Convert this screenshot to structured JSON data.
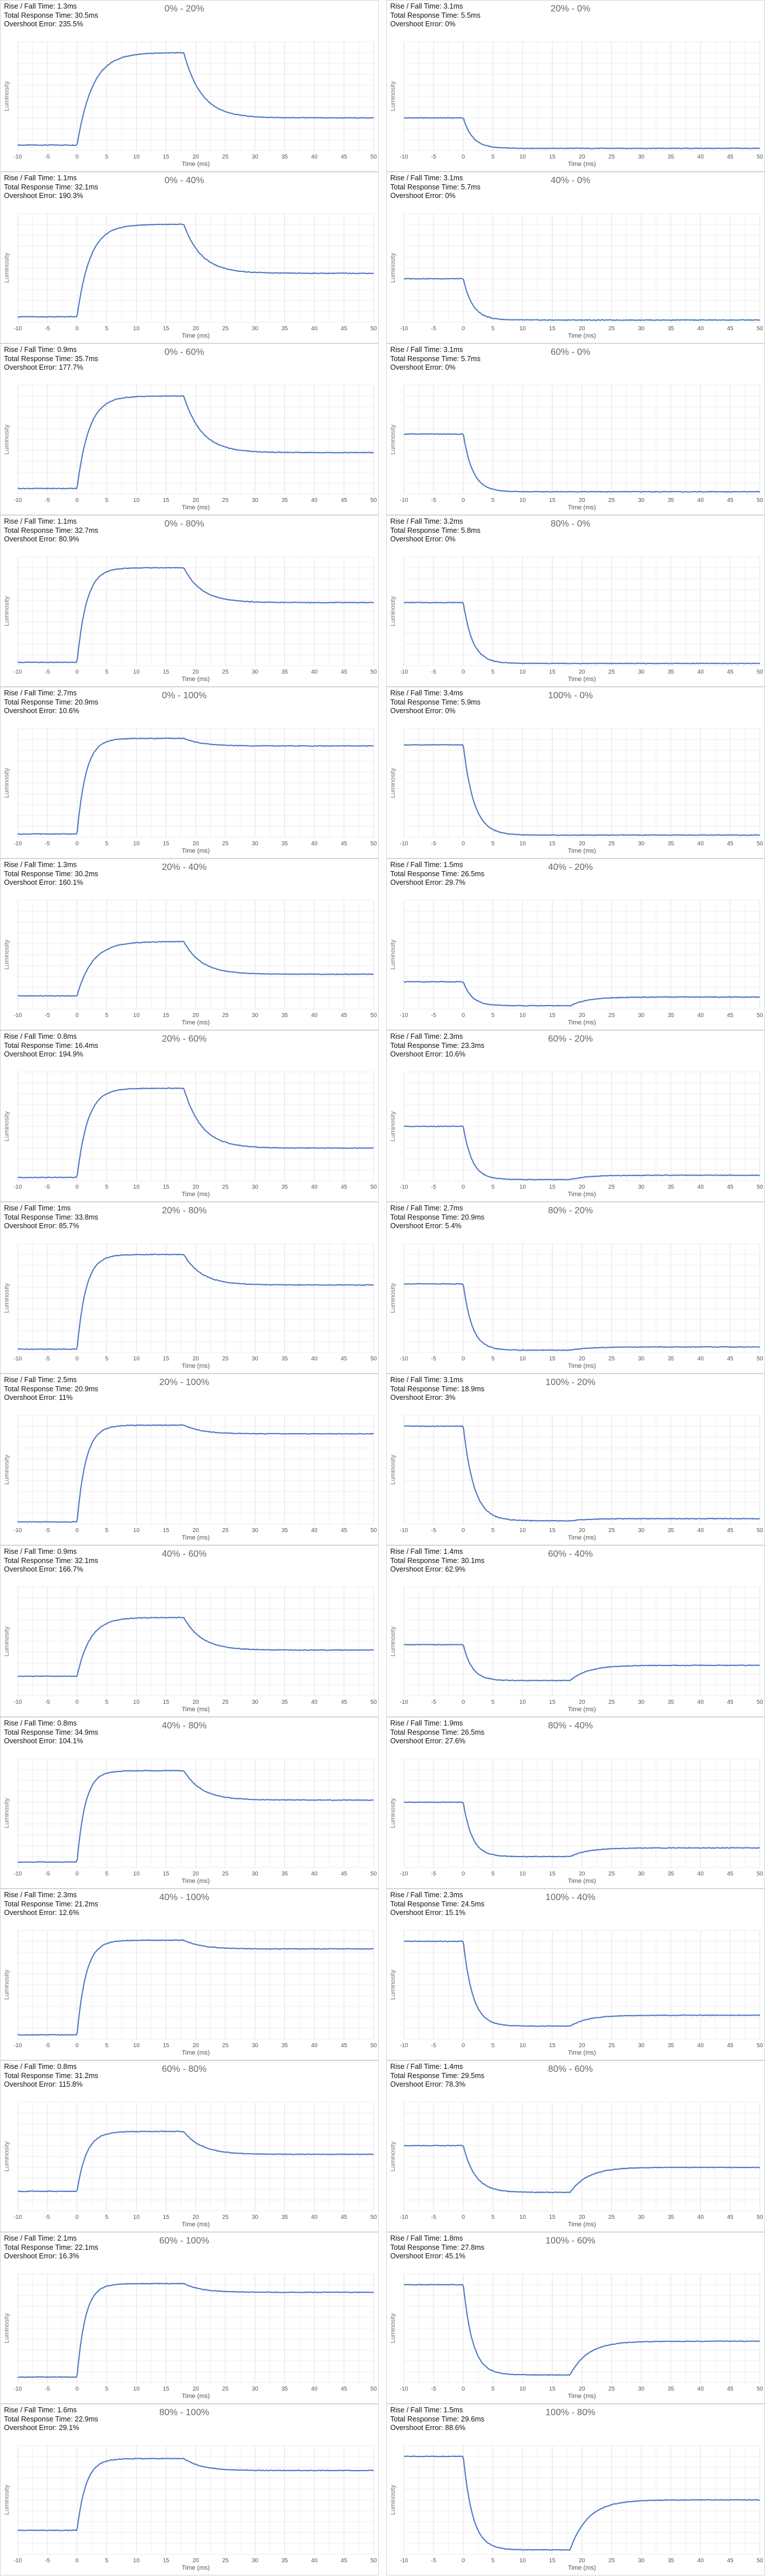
{
  "chart_data": {
    "type": "line",
    "x_unit_label": "Time (ms)",
    "y_label": "Luminosity",
    "x_ticks": [
      -10,
      -5,
      0,
      5,
      10,
      15,
      20,
      25,
      30,
      35,
      40,
      45,
      50
    ],
    "xlim": [
      -10,
      50
    ],
    "ylim": [
      0,
      1
    ],
    "grid": true,
    "line_color": "#4a76c4",
    "panels": [
      {
        "title": "0% - 20%",
        "rise": "Rise / Fall Time: 1.3ms",
        "total": "Total Response Time: 30.5ms",
        "overshoot": "Overshoot Error: 235.5%",
        "base": 0.05,
        "target": 0.3,
        "peak": 0.9,
        "hold_ms": 18,
        "tau": 2.6
      },
      {
        "title": "20% - 0%",
        "rise": "Rise / Fall Time: 3.1ms",
        "total": "Total Response Time: 5.5ms",
        "overshoot": "Overshoot Error: 0%",
        "base": 0.3,
        "target": 0.02,
        "peak": 0.02,
        "hold_ms": 0,
        "tau": 1.6
      },
      {
        "title": "0% - 40%",
        "rise": "Rise / Fall Time: 1.1ms",
        "total": "Total Response Time: 32.1ms",
        "overshoot": "Overshoot Error: 190.3%",
        "base": 0.05,
        "target": 0.45,
        "peak": 0.9,
        "hold_ms": 18,
        "tau": 2.2
      },
      {
        "title": "40% - 0%",
        "rise": "Rise / Fall Time: 3.1ms",
        "total": "Total Response Time: 5.7ms",
        "overshoot": "Overshoot Error: 0%",
        "base": 0.4,
        "target": 0.02,
        "peak": 0.02,
        "hold_ms": 0,
        "tau": 1.6
      },
      {
        "title": "0% - 60%",
        "rise": "Rise / Fall Time: 0.9ms",
        "total": "Total Response Time: 35.7ms",
        "overshoot": "Overshoot Error: 177.7%",
        "base": 0.05,
        "target": 0.38,
        "peak": 0.9,
        "hold_ms": 18,
        "tau": 2.0
      },
      {
        "title": "60% - 0%",
        "rise": "Rise / Fall Time: 3.1ms",
        "total": "Total Response Time: 5.7ms",
        "overshoot": "Overshoot Error: 0%",
        "base": 0.55,
        "target": 0.02,
        "peak": 0.02,
        "hold_ms": 0,
        "tau": 1.6
      },
      {
        "title": "0% - 80%",
        "rise": "Rise / Fall Time: 1.1ms",
        "total": "Total Response Time: 32.7ms",
        "overshoot": "Overshoot Error: 80.9%",
        "base": 0.03,
        "target": 0.58,
        "peak": 0.9,
        "hold_ms": 18,
        "tau": 1.6
      },
      {
        "title": "80% - 0%",
        "rise": "Rise / Fall Time: 3.2ms",
        "total": "Total Response Time: 5.8ms",
        "overshoot": "Overshoot Error: 0%",
        "base": 0.58,
        "target": 0.02,
        "peak": 0.02,
        "hold_ms": 0,
        "tau": 1.6
      },
      {
        "title": "0% - 100%",
        "rise": "Rise / Fall Time: 2.7ms",
        "total": "Total Response Time: 20.9ms",
        "overshoot": "Overshoot Error: 10.6%",
        "base": 0.03,
        "target": 0.84,
        "peak": 0.91,
        "hold_ms": 18,
        "tau": 1.5
      },
      {
        "title": "100% - 0%",
        "rise": "Rise / Fall Time: 3.4ms",
        "total": "Total Response Time: 5.9ms",
        "overshoot": "Overshoot Error: 0%",
        "base": 0.85,
        "target": 0.02,
        "peak": 0.02,
        "hold_ms": 0,
        "tau": 1.8
      },
      {
        "title": "20% - 40%",
        "rise": "Rise / Fall Time: 1.3ms",
        "total": "Total Response Time: 30.2ms",
        "overshoot": "Overshoot Error: 160.1%",
        "base": 0.12,
        "target": 0.32,
        "peak": 0.62,
        "hold_ms": 18,
        "tau": 2.6
      },
      {
        "title": "40% - 20%",
        "rise": "Rise / Fall Time: 1.5ms",
        "total": "Total Response Time: 26.5ms",
        "overshoot": "Overshoot Error: 29.7%",
        "base": 0.25,
        "target": 0.11,
        "peak": 0.03,
        "hold_ms": 18,
        "tau": 1.5
      },
      {
        "title": "20% - 60%",
        "rise": "Rise / Fall Time: 0.8ms",
        "total": "Total Response Time: 16.4ms",
        "overshoot": "Overshoot Error: 194.9%",
        "base": 0.03,
        "target": 0.3,
        "peak": 0.85,
        "hold_ms": 18,
        "tau": 1.8
      },
      {
        "title": "60% - 20%",
        "rise": "Rise / Fall Time: 2.3ms",
        "total": "Total Response Time: 23.3ms",
        "overshoot": "Overshoot Error: 10.6%",
        "base": 0.5,
        "target": 0.05,
        "peak": 0.01,
        "hold_ms": 18,
        "tau": 1.5
      },
      {
        "title": "20% - 80%",
        "rise": "Rise / Fall Time: 1ms",
        "total": "Total Response Time: 33.8ms",
        "overshoot": "Overshoot Error: 85.7%",
        "base": 0.03,
        "target": 0.62,
        "peak": 0.9,
        "hold_ms": 18,
        "tau": 1.5
      },
      {
        "title": "80% - 20%",
        "rise": "Rise / Fall Time: 2.7ms",
        "total": "Total Response Time: 20.9ms",
        "overshoot": "Overshoot Error: 5.4%",
        "base": 0.63,
        "target": 0.05,
        "peak": 0.02,
        "hold_ms": 18,
        "tau": 1.5
      },
      {
        "title": "20% - 100%",
        "rise": "Rise / Fall Time: 2.5ms",
        "total": "Total Response Time: 20.9ms",
        "overshoot": "Overshoot Error: 11%",
        "base": 0.02,
        "target": 0.83,
        "peak": 0.91,
        "hold_ms": 18,
        "tau": 1.5
      },
      {
        "title": "100% - 20%",
        "rise": "Rise / Fall Time: 3.1ms",
        "total": "Total Response Time: 18.9ms",
        "overshoot": "Overshoot Error: 3%",
        "base": 0.9,
        "target": 0.05,
        "peak": 0.03,
        "hold_ms": 18,
        "tau": 1.8
      },
      {
        "title": "40% - 60%",
        "rise": "Rise / Fall Time: 0.9ms",
        "total": "Total Response Time: 32.1ms",
        "overshoot": "Overshoot Error: 166.7%",
        "base": 0.18,
        "target": 0.42,
        "peak": 0.72,
        "hold_ms": 18,
        "tau": 2.2
      },
      {
        "title": "60% - 40%",
        "rise": "Rise / Fall Time: 1.4ms",
        "total": "Total Response Time: 30.1ms",
        "overshoot": "Overshoot Error: 62.9%",
        "base": 0.47,
        "target": 0.28,
        "peak": 0.14,
        "hold_ms": 18,
        "tau": 1.5
      },
      {
        "title": "40% - 80%",
        "rise": "Rise / Fall Time: 0.8ms",
        "total": "Total Response Time: 34.9ms",
        "overshoot": "Overshoot Error: 104.1%",
        "base": 0.05,
        "target": 0.62,
        "peak": 0.89,
        "hold_ms": 18,
        "tau": 1.4
      },
      {
        "title": "80% - 40%",
        "rise": "Rise / Fall Time: 1.9ms",
        "total": "Total Response Time: 26.5ms",
        "overshoot": "Overshoot Error: 27.6%",
        "base": 0.6,
        "target": 0.18,
        "peak": 0.1,
        "hold_ms": 18,
        "tau": 1.5
      },
      {
        "title": "40% - 100%",
        "rise": "Rise / Fall Time: 2.3ms",
        "total": "Total Response Time: 21.2ms",
        "overshoot": "Overshoot Error: 12.6%",
        "base": 0.04,
        "target": 0.83,
        "peak": 0.91,
        "hold_ms": 18,
        "tau": 1.5
      },
      {
        "title": "100% - 40%",
        "rise": "Rise / Fall Time: 2.3ms",
        "total": "Total Response Time: 24.5ms",
        "overshoot": "Overshoot Error: 15.1%",
        "base": 0.9,
        "target": 0.22,
        "peak": 0.12,
        "hold_ms": 18,
        "tau": 1.6
      },
      {
        "title": "60% - 80%",
        "rise": "Rise / Fall Time: 0.8ms",
        "total": "Total Response Time: 31.2ms",
        "overshoot": "Overshoot Error: 115.8%",
        "base": 0.18,
        "target": 0.52,
        "peak": 0.73,
        "hold_ms": 18,
        "tau": 1.6
      },
      {
        "title": "80% - 60%",
        "rise": "Rise / Fall Time: 1.4ms",
        "total": "Total Response Time: 29.5ms",
        "overshoot": "Overshoot Error: 78.3%",
        "base": 0.6,
        "target": 0.4,
        "peak": 0.17,
        "hold_ms": 18,
        "tau": 2.0
      },
      {
        "title": "60% - 100%",
        "rise": "Rise / Fall Time: 2.1ms",
        "total": "Total Response Time: 22.1ms",
        "overshoot": "Overshoot Error: 16.3%",
        "base": 0.05,
        "target": 0.83,
        "peak": 0.91,
        "hold_ms": 18,
        "tau": 1.4
      },
      {
        "title": "100% - 60%",
        "rise": "Rise / Fall Time: 1.8ms",
        "total": "Total Response Time: 27.8ms",
        "overshoot": "Overshoot Error: 45.1%",
        "base": 0.9,
        "target": 0.38,
        "peak": 0.07,
        "hold_ms": 18,
        "tau": 1.6
      },
      {
        "title": "80% - 100%",
        "rise": "Rise / Fall Time: 1.6ms",
        "total": "Total Response Time: 22.9ms",
        "overshoot": "Overshoot Error: 29.1%",
        "base": 0.22,
        "target": 0.77,
        "peak": 0.88,
        "hold_ms": 18,
        "tau": 1.5
      },
      {
        "title": "100% - 80%",
        "rise": "Rise / Fall Time: 1.5ms",
        "total": "Total Response Time: 29.6ms",
        "overshoot": "Overshoot Error: 88.6%",
        "base": 0.9,
        "target": 0.5,
        "peak": 0.04,
        "hold_ms": 18,
        "tau": 1.6
      }
    ]
  }
}
